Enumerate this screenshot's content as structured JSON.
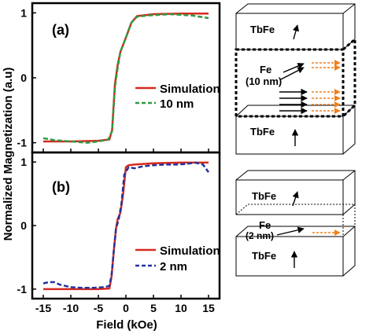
{
  "colors": {
    "simulation": "#d62a1e",
    "sample_a": "#2e9a44",
    "sample_b": "#25339b",
    "fe_arrow": "#ef7f1a",
    "axes": "#000000"
  },
  "chart_data": [
    {
      "type": "line",
      "panel_label": "(a)",
      "xlim": [
        -17,
        17
      ],
      "ylim": [
        -1.15,
        1.15
      ],
      "x_ticks": [
        -15,
        -10,
        -5,
        0,
        5,
        10,
        15
      ],
      "y_ticks": [
        1,
        0,
        -1
      ],
      "xlabel": "",
      "ylabel": "Normalized Magnetization (a.u)",
      "legend": "lower-right",
      "series": [
        {
          "name": "Simulation",
          "style": "solid",
          "x": [
            -15,
            -10,
            -5,
            -3.0,
            -2.5,
            -2.0,
            -1.5,
            -1.0,
            0.0,
            1.0,
            2.0,
            5,
            10,
            15
          ],
          "y": [
            -0.98,
            -0.98,
            -0.97,
            -0.95,
            -0.8,
            -0.1,
            0.2,
            0.4,
            0.62,
            0.85,
            0.95,
            0.98,
            0.99,
            0.99
          ]
        },
        {
          "name": "10 nm",
          "style": "dashed",
          "x": [
            -15,
            -13,
            -10,
            -7,
            -5,
            -3.2,
            -2.5,
            -2.0,
            -1.5,
            -1.0,
            0.0,
            1.0,
            2.0,
            4,
            6,
            8,
            10,
            12,
            15
          ],
          "y": [
            -0.93,
            -0.96,
            -0.98,
            -1.0,
            -0.98,
            -0.95,
            -0.82,
            -0.15,
            0.15,
            0.4,
            0.62,
            0.85,
            0.94,
            0.96,
            0.97,
            0.98,
            0.97,
            0.96,
            0.92
          ]
        }
      ]
    },
    {
      "type": "line",
      "panel_label": "(b)",
      "xlim": [
        -17,
        17
      ],
      "ylim": [
        -1.15,
        1.15
      ],
      "x_ticks": [
        -15,
        -10,
        -5,
        0,
        5,
        10,
        15
      ],
      "y_ticks": [
        1,
        0,
        -1
      ],
      "xlabel": "Field (kOe)",
      "ylabel": "",
      "legend": "lower-right",
      "series": [
        {
          "name": "Simulation",
          "style": "solid",
          "x": [
            -15,
            -10,
            -5,
            -3.0,
            -2.6,
            -2.2,
            -1.8,
            -1.5,
            -1.0,
            -0.5,
            0.0,
            0.5,
            1.5,
            5,
            10,
            15
          ],
          "y": [
            -1.0,
            -1.0,
            -1.0,
            -0.99,
            -0.8,
            -0.4,
            -0.05,
            0.1,
            0.2,
            0.5,
            0.92,
            0.95,
            0.96,
            0.98,
            0.99,
            0.99
          ]
        },
        {
          "name": "2 nm",
          "style": "dashed",
          "x": [
            -15,
            -14,
            -13,
            -12,
            -10,
            -8,
            -6,
            -4,
            -3.0,
            -2.6,
            -2.2,
            -1.8,
            -1.3,
            -0.8,
            -0.3,
            0.5,
            1.5,
            3,
            5,
            7,
            9,
            11,
            12.5,
            14,
            15
          ],
          "y": [
            -0.91,
            -0.89,
            -0.89,
            -0.93,
            -0.97,
            -0.98,
            -0.98,
            -0.97,
            -0.95,
            -0.78,
            -0.4,
            -0.05,
            0.1,
            0.35,
            0.8,
            0.92,
            0.9,
            0.93,
            0.95,
            0.96,
            0.96,
            0.97,
            0.99,
            0.96,
            0.84
          ]
        }
      ]
    }
  ],
  "diagram_top": {
    "top_layer": "TbFe",
    "fe_label": "Fe",
    "fe_thickness": "(10 nm)",
    "bottom_layer": "TbFe"
  },
  "diagram_bottom": {
    "top_layer": "TbFe",
    "fe_label": "Fe",
    "fe_thickness": "(2 nm)",
    "bottom_layer": "TbFe"
  }
}
